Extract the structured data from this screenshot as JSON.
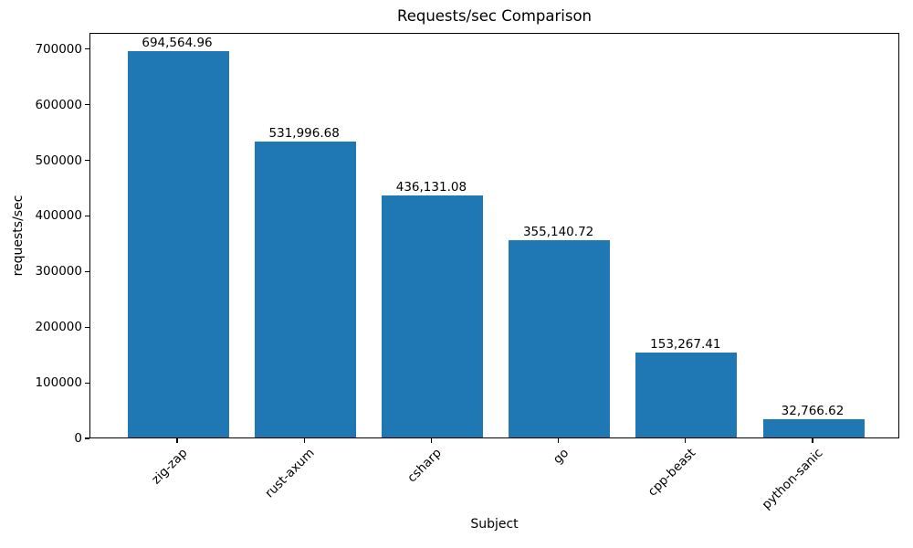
{
  "title": "Requests/sec Comparison",
  "colors": {
    "bar": "#1f77b4",
    "text": "#000000",
    "background": "#ffffff",
    "spine": "#000000"
  },
  "chart_data": {
    "type": "bar",
    "title": "Requests/sec Comparison",
    "xlabel": "Subject",
    "ylabel": "requests/sec",
    "categories": [
      "zig-zap",
      "rust-axum",
      "csharp",
      "go",
      "cpp-beast",
      "python-sanic"
    ],
    "values": [
      694564.96,
      531996.68,
      436131.08,
      355140.72,
      153267.41,
      32766.62
    ],
    "value_labels": [
      "694,564.96",
      "531,996.68",
      "436,131.08",
      "355,140.72",
      "153,267.41",
      "32,766.62"
    ],
    "yticks": [
      0,
      100000,
      200000,
      300000,
      400000,
      500000,
      600000,
      700000
    ],
    "ytick_labels": [
      "0",
      "100000",
      "200000",
      "300000",
      "400000",
      "500000",
      "600000",
      "700000"
    ],
    "ylim": [
      0,
      729293
    ],
    "grid": false,
    "legend": null,
    "bar_color": "#1f77b4",
    "x_tick_rotation_deg": 45
  }
}
